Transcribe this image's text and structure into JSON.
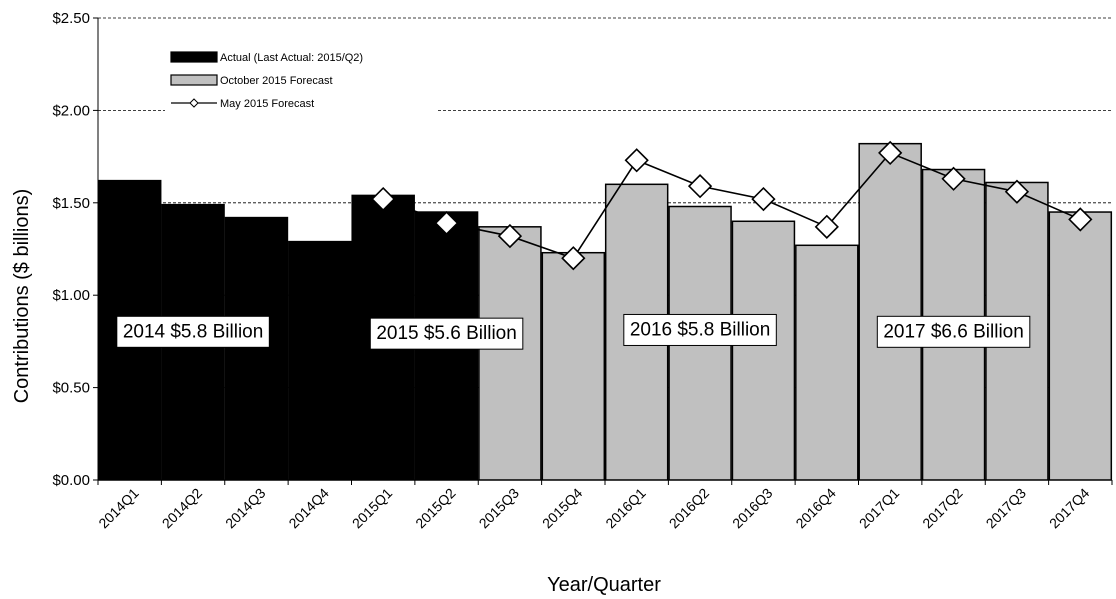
{
  "chart_data": {
    "type": "bar",
    "title": "",
    "xlabel": "Year/Quarter",
    "ylabel": "Contributions ($ billions)",
    "ylim": [
      0,
      2.5
    ],
    "yticks": [
      "$0.00",
      "$0.50",
      "$1.00",
      "$1.50",
      "$2.00",
      "$2.50"
    ],
    "grid": "horizontal-dashed",
    "legend_position": "top-left",
    "categories": [
      "2014Q1",
      "2014Q2",
      "2014Q3",
      "2014Q4",
      "2015Q1",
      "2015Q2",
      "2015Q3",
      "2015Q4",
      "2016Q1",
      "2016Q2",
      "2016Q3",
      "2016Q4",
      "2017Q1",
      "2017Q2",
      "2017Q3",
      "2017Q4"
    ],
    "series": [
      {
        "name": "Actual (Last Actual: 2015/Q2)",
        "type": "bar",
        "color": "#000000",
        "values": [
          1.62,
          1.49,
          1.42,
          1.29,
          1.54,
          1.45,
          null,
          null,
          null,
          null,
          null,
          null,
          null,
          null,
          null,
          null
        ]
      },
      {
        "name": "October 2015 Forecast",
        "type": "bar",
        "color": "#c0c0c0",
        "values": [
          null,
          null,
          null,
          null,
          null,
          null,
          1.37,
          1.23,
          1.6,
          1.48,
          1.4,
          1.27,
          1.82,
          1.68,
          1.61,
          1.45
        ]
      },
      {
        "name": "May 2015 Forecast",
        "type": "line",
        "marker": "diamond",
        "color": "#000000",
        "values": [
          null,
          null,
          null,
          null,
          1.52,
          1.39,
          1.32,
          1.2,
          1.73,
          1.59,
          1.52,
          1.37,
          1.77,
          1.63,
          1.56,
          1.41
        ]
      }
    ],
    "annotations": [
      {
        "text": "2014 $5.8 Billion",
        "anchor_category": "2014Q2",
        "y": 0.81
      },
      {
        "text": "2015 $5.6 Billion",
        "anchor_category": "2015Q2",
        "y": 0.8
      },
      {
        "text": "2016 $5.8 Billion",
        "anchor_category": "2016Q2",
        "y": 0.82
      },
      {
        "text": "2017 $6.6 Billion",
        "anchor_category": "2017Q2",
        "y": 0.81
      }
    ]
  }
}
